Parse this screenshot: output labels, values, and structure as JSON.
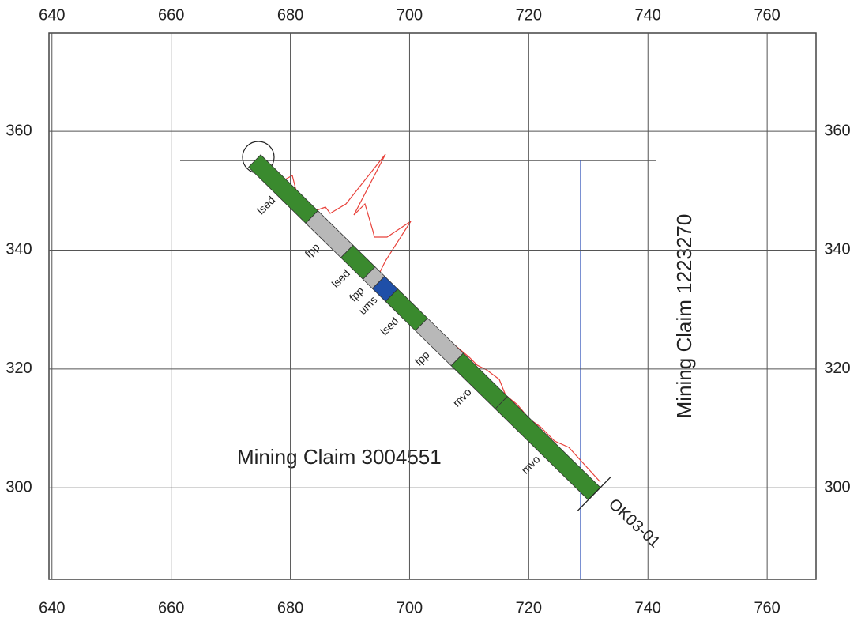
{
  "axes": {
    "xlim": [
      639.5,
      768.2
    ],
    "xticks": [
      640,
      660,
      680,
      700,
      720,
      740,
      760
    ],
    "ylim": [
      284.6,
      376.5
    ],
    "yticks": [
      300,
      320,
      340,
      360
    ],
    "grid": true
  },
  "hole": {
    "name": "OK03-01",
    "collar": [
      674,
      355
    ],
    "toe": [
      731,
      299
    ],
    "segments": [
      {
        "label": "lsed",
        "x_to": 683.6,
        "color": "#3a8a2e"
      },
      {
        "label": "fpp",
        "x_to": 689.5,
        "color": "#b8b8b8"
      },
      {
        "label": "lsed",
        "x_to": 693.2,
        "color": "#3a8a2e"
      },
      {
        "label": "fpp",
        "x_to": 694.8,
        "color": "#b8b8b8"
      },
      {
        "label": "ums",
        "x_to": 697,
        "color": "#1f4fa8"
      },
      {
        "label": "lsed",
        "x_to": 702,
        "color": "#3a8a2e"
      },
      {
        "label": "fpp",
        "x_to": 708,
        "color": "#b8b8b8"
      },
      {
        "label": "mvo",
        "x_to": 715.4,
        "color": "#3a8a2e"
      },
      {
        "label": "mvo",
        "x_to": 731,
        "color": "#3a8a2e"
      }
    ]
  },
  "claims": [
    "Mining Claim 3004551",
    "Mining Claim 1223270"
  ]
}
